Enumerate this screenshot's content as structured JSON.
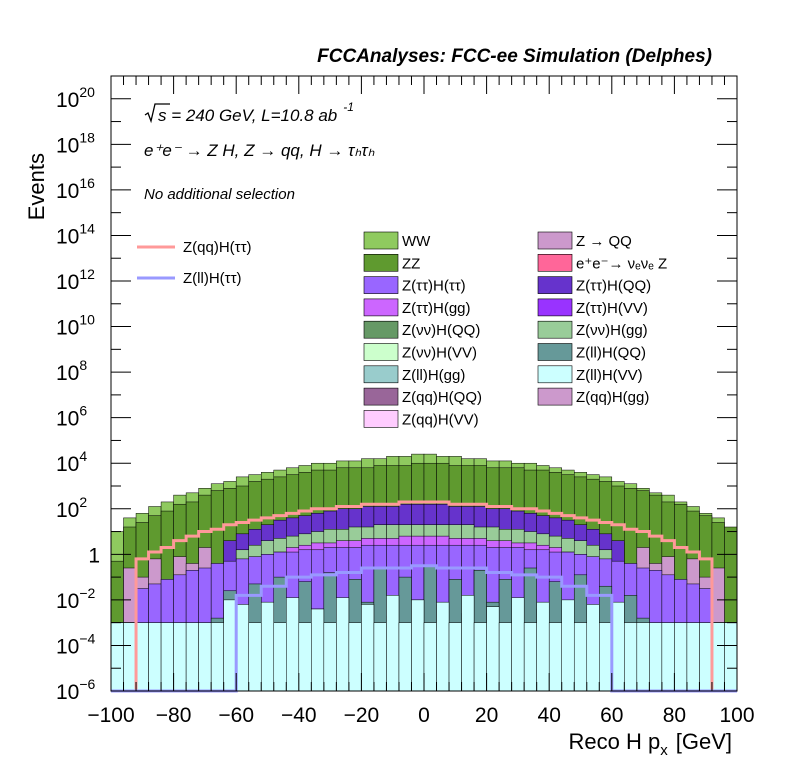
{
  "chart_data": {
    "type": "histogram",
    "title": "FCCAnalyses: FCC-ee Simulation (Delphes)",
    "xlabel": "Reco H p",
    "xlabel_sub": "x",
    "xlabel_unit": "[GeV]",
    "ylabel": "Events",
    "xlim": [
      -100,
      100
    ],
    "ylim_log10": [
      -6,
      21
    ],
    "xticks": [
      -100,
      -80,
      -60,
      -40,
      -20,
      0,
      20,
      40,
      60,
      80,
      100
    ],
    "xtick_labels": [
      "−100",
      "−80",
      "−60",
      "−40",
      "−20",
      "0",
      "20",
      "40",
      "60",
      "80",
      "100"
    ],
    "yticks": [
      {
        "exp": -6,
        "base": "10",
        "sup": "−6"
      },
      {
        "exp": -4,
        "base": "10",
        "sup": "−4"
      },
      {
        "exp": -2,
        "base": "10",
        "sup": "−2"
      },
      {
        "exp": 0,
        "base": "1",
        "sup": ""
      },
      {
        "exp": 2,
        "base": "10",
        "sup": "2"
      },
      {
        "exp": 4,
        "base": "10",
        "sup": "4"
      },
      {
        "exp": 6,
        "base": "10",
        "sup": "6"
      },
      {
        "exp": 8,
        "base": "10",
        "sup": "8"
      },
      {
        "exp": 10,
        "base": "10",
        "sup": "10"
      },
      {
        "exp": 12,
        "base": "10",
        "sup": "12"
      },
      {
        "exp": 14,
        "base": "10",
        "sup": "14"
      },
      {
        "exp": 16,
        "base": "10",
        "sup": "16"
      },
      {
        "exp": 18,
        "base": "10",
        "sup": "18"
      },
      {
        "exp": 20,
        "base": "10",
        "sup": "20"
      }
    ],
    "annotations": {
      "energy": "s = 240 GeV, L=10.8 ab",
      "energy_exp": "-1",
      "process": "e⁺e⁻ → Z H, Z  → qq, H  → τₕτₕ",
      "selection": "No additional selection"
    },
    "bin_edges_start": -100,
    "bin_width": 4,
    "stack_layers": [
      {
        "name": "ZZ",
        "color": "#5f9a2f",
        "log10": [
          -0.3,
          1.2,
          1.4,
          1.7,
          1.9,
          2.2,
          2.3,
          2.6,
          2.8,
          2.9,
          3.0,
          3.2,
          3.3,
          3.4,
          3.5,
          3.6,
          3.7,
          3.7,
          3.8,
          3.8,
          3.8,
          3.9,
          3.9,
          3.9,
          4.0,
          4.0,
          4.0,
          3.9,
          3.9,
          3.9,
          3.8,
          3.8,
          3.8,
          3.7,
          3.7,
          3.6,
          3.5,
          3.4,
          3.3,
          3.2,
          3.0,
          2.9,
          2.8,
          2.6,
          2.3,
          2.2,
          1.9,
          1.7,
          1.4,
          1.2
        ]
      },
      {
        "name": "WW",
        "color": "#8fca5f",
        "log10": [
          1.0,
          1.6,
          1.8,
          2.1,
          2.3,
          2.6,
          2.7,
          2.9,
          3.1,
          3.2,
          3.4,
          3.5,
          3.6,
          3.7,
          3.8,
          3.9,
          4.0,
          4.0,
          4.1,
          4.1,
          4.2,
          4.2,
          4.3,
          4.3,
          4.4,
          4.4,
          4.3,
          4.3,
          4.2,
          4.2,
          4.1,
          4.1,
          4.0,
          4.0,
          3.9,
          3.8,
          3.7,
          3.6,
          3.5,
          3.4,
          3.2,
          3.1,
          2.9,
          2.7,
          2.6,
          2.3,
          2.1,
          1.8,
          1.6,
          1.0
        ]
      }
    ],
    "inner_bands": [
      {
        "name": "Z → QQ",
        "color": "#cc99cc",
        "log10": [
          -3,
          -0.6,
          -1.0,
          -0.2,
          -1.3,
          -0.1,
          -0.4,
          0.3,
          -0.9,
          0.5,
          0.6,
          0.6,
          0.8,
          0.9,
          1.0,
          1.1,
          1.2,
          1.2,
          1.3,
          1.3,
          1.3,
          1.4,
          1.4,
          1.4,
          1.4,
          1.4,
          1.4,
          1.4,
          1.4,
          1.3,
          1.3,
          1.3,
          1.2,
          1.2,
          1.1,
          1.0,
          0.9,
          0.8,
          0.6,
          0.6,
          0.5,
          -0.9,
          0.3,
          -0.4,
          -0.1,
          -1.3,
          -0.2,
          -1.0,
          -0.6,
          -3
        ]
      },
      {
        "name": "Z(ττ)H(QQ)",
        "color": "#6633cc",
        "log10": [
          -3,
          -3,
          -3,
          -3,
          -3,
          -3,
          -3,
          -3,
          -3,
          0.6,
          0.9,
          1.1,
          1.3,
          1.5,
          1.6,
          1.7,
          1.8,
          1.9,
          2.0,
          2.0,
          2.1,
          2.1,
          2.1,
          2.2,
          2.2,
          2.2,
          2.2,
          2.1,
          2.1,
          2.1,
          2.0,
          2.0,
          1.9,
          1.8,
          1.7,
          1.6,
          1.5,
          1.3,
          1.1,
          0.9,
          0.6,
          -3,
          -3,
          -3,
          -3,
          -3,
          -3,
          -3,
          -3,
          -3
        ]
      },
      {
        "name": "Z(νν)H(gg)",
        "color": "#99cc99",
        "log10": [
          -3,
          -3,
          -3,
          -3,
          -3,
          -3,
          -3,
          -3,
          -3,
          -3,
          0.2,
          0.4,
          0.6,
          0.7,
          0.8,
          0.9,
          1.0,
          1.1,
          1.1,
          1.2,
          1.2,
          1.3,
          1.3,
          1.3,
          1.3,
          1.3,
          1.3,
          1.3,
          1.3,
          1.2,
          1.2,
          1.1,
          1.1,
          1.0,
          0.9,
          0.8,
          0.7,
          0.6,
          0.4,
          0.2,
          -3,
          -3,
          -3,
          -3,
          -3,
          -3,
          -3,
          -3,
          -3,
          -3
        ]
      },
      {
        "name": "Z(ττ)H(gg)",
        "color": "#cc66ff",
        "log10": [
          -3,
          -3,
          -3,
          -3,
          -3,
          -3,
          -3,
          -3,
          -0.9,
          -0.6,
          -0.4,
          -0.2,
          0.0,
          0.1,
          0.3,
          0.4,
          0.5,
          0.5,
          0.6,
          0.6,
          0.7,
          0.7,
          0.7,
          0.8,
          0.8,
          0.8,
          0.8,
          0.7,
          0.7,
          0.7,
          0.6,
          0.6,
          0.5,
          0.5,
          0.4,
          0.3,
          0.1,
          0.0,
          -0.2,
          -0.4,
          -0.6,
          -0.9,
          -3,
          -3,
          -3,
          -3,
          -3,
          -3,
          -3,
          -3
        ]
      },
      {
        "name": "Z(ττ)H(ττ)",
        "color": "#9966ff",
        "log10": [
          -3,
          -3,
          -1.5,
          -1.3,
          -1.1,
          -0.9,
          -0.7,
          -0.6,
          -0.4,
          -0.3,
          -0.2,
          -0.1,
          0.0,
          0.1,
          0.1,
          0.2,
          0.2,
          0.3,
          0.3,
          0.3,
          0.4,
          0.4,
          0.4,
          0.4,
          0.4,
          0.4,
          0.4,
          0.4,
          0.4,
          0.4,
          0.3,
          0.3,
          0.3,
          0.2,
          0.2,
          0.1,
          0.1,
          0.0,
          -0.1,
          -0.2,
          -0.3,
          -0.4,
          -0.6,
          -0.7,
          -0.9,
          -1.1,
          -1.3,
          -1.5,
          -3,
          -3
        ]
      },
      {
        "name": "Z(ll)H(QQ)",
        "color": "#669999",
        "log10": [
          -3,
          -3,
          -3,
          -3,
          -3,
          -3,
          -3,
          -3,
          -2.8,
          -1.6,
          -3.3,
          -1.3,
          -2.6,
          -1.0,
          -3.1,
          -1.2,
          -2.4,
          -0.8,
          -3.0,
          -1.1,
          -2.1,
          -0.6,
          -2.7,
          -1.0,
          -2.0,
          -0.5,
          -2.2,
          -1.1,
          -2.6,
          -0.7,
          -2.1,
          -1.1,
          -2.9,
          -0.6,
          -2.4,
          -1.2,
          -3.0,
          -0.9,
          -2.5,
          -1.4,
          -3.2,
          -1.8,
          -2.8,
          -3,
          -3,
          -3,
          -3,
          -3,
          -3,
          -3
        ]
      },
      {
        "name": "Z(ll)H(VV)",
        "color": "#ccffff",
        "log10": [
          -3,
          -3,
          -3,
          -3,
          -3,
          -3,
          -3,
          -3,
          -3,
          -2.0,
          -2.2,
          -3,
          -2.1,
          -3,
          -1.9,
          -3,
          -2.4,
          -3,
          -1.9,
          -3,
          -2.2,
          -3,
          -1.8,
          -3,
          -2.0,
          -3,
          -2.1,
          -3,
          -1.8,
          -3,
          -2.3,
          -3,
          -1.9,
          -3,
          -2.1,
          -3,
          -2.0,
          -3,
          -2.2,
          -3,
          -2.1,
          -3,
          -3,
          -3,
          -3,
          -3,
          -3,
          -3,
          -3,
          -3
        ]
      }
    ],
    "lines": [
      {
        "name": "Z(qq)H(ττ)",
        "color": "#ff9999",
        "log10": [
          -6,
          -6,
          -0.2,
          0.1,
          0.3,
          0.6,
          0.8,
          1.0,
          1.1,
          1.3,
          1.4,
          1.5,
          1.6,
          1.7,
          1.8,
          1.9,
          2.0,
          2.0,
          2.1,
          2.1,
          2.2,
          2.2,
          2.2,
          2.3,
          2.3,
          2.3,
          2.3,
          2.2,
          2.2,
          2.2,
          2.1,
          2.1,
          2.0,
          2.0,
          1.9,
          1.8,
          1.7,
          1.6,
          1.5,
          1.4,
          1.3,
          1.1,
          1.0,
          0.8,
          0.6,
          0.3,
          0.1,
          -0.2,
          -6,
          -6
        ]
      },
      {
        "name": "Z(ll)H(ττ)",
        "color": "#9999ff",
        "log10": [
          -6,
          -6,
          -6,
          -6,
          -6,
          -6,
          -6,
          -6,
          -6,
          -6,
          -1.8,
          -1.8,
          -1.4,
          -1.4,
          -1.0,
          -1.0,
          -0.9,
          -0.9,
          -0.8,
          -0.8,
          -0.6,
          -0.6,
          -0.6,
          -0.6,
          -0.5,
          -0.5,
          -0.6,
          -0.6,
          -0.6,
          -0.6,
          -0.8,
          -0.8,
          -0.9,
          -0.9,
          -1.0,
          -1.0,
          -1.4,
          -1.4,
          -1.8,
          -1.8,
          -6,
          -6,
          -6,
          -6,
          -6,
          -6,
          -6,
          -6,
          -6,
          -6
        ]
      }
    ],
    "legend_left": [
      {
        "label": "Z(qq)H(ττ)",
        "color": "#ff9999",
        "style": "line"
      },
      {
        "label": "Z(ll)H(ττ)",
        "color": "#9999ff",
        "style": "line"
      }
    ],
    "legend_grid": [
      {
        "label": "WW",
        "color": "#8fca5f"
      },
      {
        "label": "Z → QQ",
        "color": "#cc99cc"
      },
      {
        "label": "ZZ",
        "color": "#5f9a2f"
      },
      {
        "label": "e⁺e⁻→ νₑνₑ Z",
        "color": "#ff6699"
      },
      {
        "label": "Z(ττ)H(ττ)",
        "color": "#9966ff"
      },
      {
        "label": "Z(ττ)H(QQ)",
        "color": "#6633cc"
      },
      {
        "label": "Z(ττ)H(gg)",
        "color": "#cc66ff"
      },
      {
        "label": "Z(ττ)H(VV)",
        "color": "#9933ff"
      },
      {
        "label": "Z(νν)H(QQ)",
        "color": "#669966"
      },
      {
        "label": "Z(νν)H(gg)",
        "color": "#99cc99"
      },
      {
        "label": "Z(νν)H(VV)",
        "color": "#ccffcc"
      },
      {
        "label": "Z(ll)H(QQ)",
        "color": "#669999"
      },
      {
        "label": "Z(ll)H(gg)",
        "color": "#99cccc"
      },
      {
        "label": "Z(ll)H(VV)",
        "color": "#ccffff"
      },
      {
        "label": "Z(qq)H(QQ)",
        "color": "#996699"
      },
      {
        "label": "Z(qq)H(gg)",
        "color": "#cc99cc"
      },
      {
        "label": "Z(qq)H(VV)",
        "color": "#ffccff"
      }
    ]
  }
}
